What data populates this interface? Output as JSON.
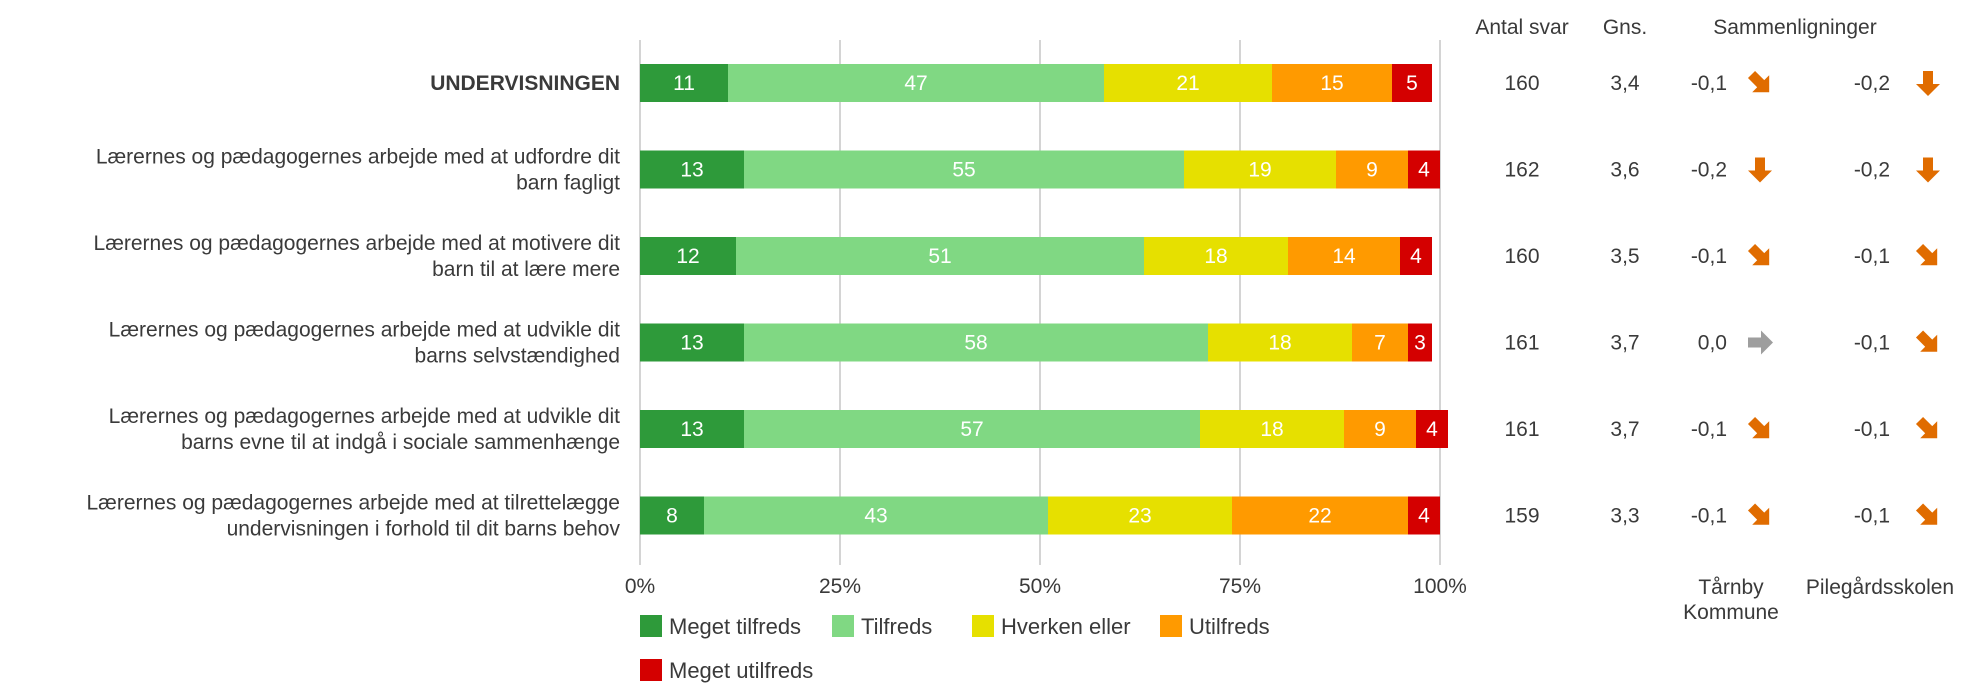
{
  "chart_data": {
    "type": "bar",
    "orientation": "horizontal",
    "stacked": true,
    "xlim": [
      0,
      100
    ],
    "x_ticks": [
      "0%",
      "25%",
      "50%",
      "75%",
      "100%"
    ],
    "grid": true,
    "legend_placement": "bottom",
    "series": [
      {
        "name": "Meget tilfreds",
        "color": "#2e9a3a"
      },
      {
        "name": "Tilfreds",
        "color": "#80d883"
      },
      {
        "name": "Hverken eller",
        "color": "#e6e000"
      },
      {
        "name": "Utilfreds",
        "color": "#ff9a00"
      },
      {
        "name": "Meget utilfreds",
        "color": "#d40000"
      }
    ],
    "rows": [
      {
        "label": "UNDERVISNINGEN",
        "bold": true,
        "values": [
          11,
          47,
          21,
          15,
          5
        ],
        "antal": "160",
        "gns": "3,4",
        "cmp1": "-0,1",
        "arrow1": "down-right",
        "cmp2": "-0,2",
        "arrow2": "down"
      },
      {
        "label": "Lærernes og pædagogernes arbejde med at udfordre dit barn fagligt",
        "label_lines": [
          "Lærernes og pædagogernes arbejde med at udfordre dit",
          "barn fagligt"
        ],
        "values": [
          13,
          55,
          19,
          9,
          4
        ],
        "antal": "162",
        "gns": "3,6",
        "cmp1": "-0,2",
        "arrow1": "down",
        "cmp2": "-0,2",
        "arrow2": "down"
      },
      {
        "label": "Lærernes og pædagogernes arbejde med at motivere dit barn til at lære mere",
        "label_lines": [
          "Lærernes og pædagogernes arbejde med at motivere dit",
          "barn til at lære mere"
        ],
        "values": [
          12,
          51,
          18,
          14,
          4
        ],
        "antal": "160",
        "gns": "3,5",
        "cmp1": "-0,1",
        "arrow1": "down-right",
        "cmp2": "-0,1",
        "arrow2": "down-right"
      },
      {
        "label": "Lærernes og pædagogernes arbejde med at udvikle dit barns selvstændighed",
        "label_lines": [
          "Lærernes og pædagogernes arbejde med at udvikle dit",
          "barns selvstændighed"
        ],
        "values": [
          13,
          58,
          18,
          7,
          3
        ],
        "antal": "161",
        "gns": "3,7",
        "cmp1": "0,0",
        "arrow1": "right",
        "cmp2": "-0,1",
        "arrow2": "down-right"
      },
      {
        "label": "Lærernes og pædagogernes arbejde med at udvikle dit barns evne til at indgå i sociale sammenhænge",
        "label_lines": [
          "Lærernes og pædagogernes arbejde med at udvikle dit",
          "barns evne til at indgå i sociale sammenhænge"
        ],
        "values": [
          13,
          57,
          18,
          9,
          4
        ],
        "antal": "161",
        "gns": "3,7",
        "cmp1": "-0,1",
        "arrow1": "down-right",
        "cmp2": "-0,1",
        "arrow2": "down-right"
      },
      {
        "label": "Lærernes og pædagogernes arbejde med at tilrettelægge undervisningen i forhold til dit barns behov",
        "label_lines": [
          "Lærernes og pædagogernes arbejde med at tilrettelægge",
          "undervisningen i forhold til dit barns behov"
        ],
        "values": [
          8,
          43,
          23,
          22,
          4
        ],
        "antal": "159",
        "gns": "3,3",
        "cmp1": "-0,1",
        "arrow1": "down-right",
        "cmp2": "-0,1",
        "arrow2": "down-right"
      }
    ],
    "headers": {
      "antal": "Antal svar",
      "gns": "Gns.",
      "comparisons": "Sammenligninger",
      "cmp1_label_lines": [
        "Tårnby",
        "Kommune"
      ],
      "cmp2_label": "Pilegårdsskolen"
    },
    "arrow_colors": {
      "down": "#e06c00",
      "down-right": "#e06c00",
      "right": "#9e9e9e"
    }
  }
}
